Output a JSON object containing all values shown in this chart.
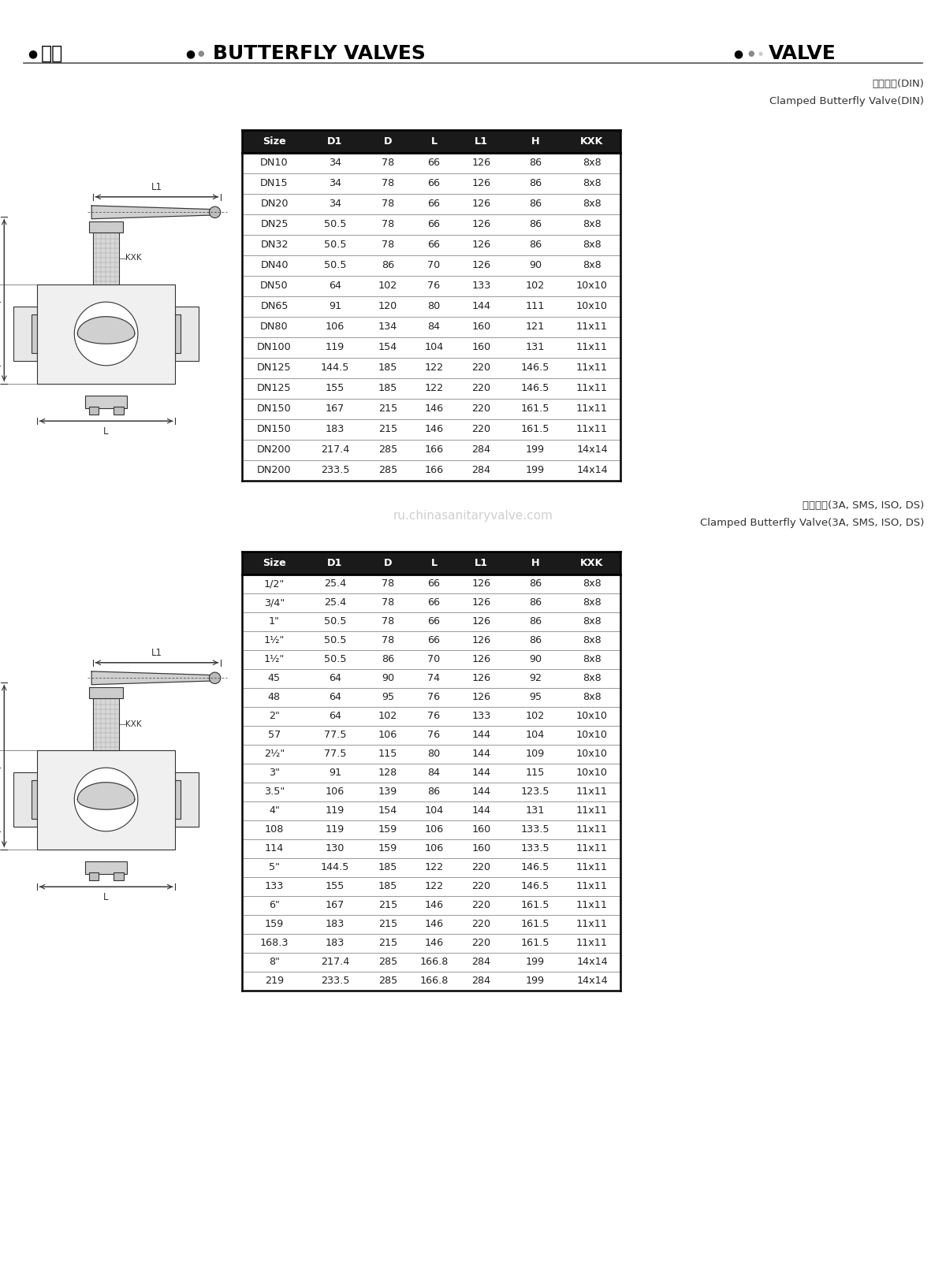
{
  "page_bg": "#ffffff",
  "header_title_left": "蟞阀",
  "header_title_mid": "BUTTERFLY VALVES",
  "header_title_right": "VALVE",
  "table1_title_cn": "卡笼蟞阀(DIN)",
  "table1_title_en": "Clamped Butterfly Valve(DIN)",
  "table1_headers": [
    "Size",
    "D1",
    "D",
    "L",
    "L1",
    "H",
    "KXK"
  ],
  "table1_rows": [
    [
      "DN10",
      "34",
      "78",
      "66",
      "126",
      "86",
      "8x8"
    ],
    [
      "DN15",
      "34",
      "78",
      "66",
      "126",
      "86",
      "8x8"
    ],
    [
      "DN20",
      "34",
      "78",
      "66",
      "126",
      "86",
      "8x8"
    ],
    [
      "DN25",
      "50.5",
      "78",
      "66",
      "126",
      "86",
      "8x8"
    ],
    [
      "DN32",
      "50.5",
      "78",
      "66",
      "126",
      "86",
      "8x8"
    ],
    [
      "DN40",
      "50.5",
      "86",
      "70",
      "126",
      "90",
      "8x8"
    ],
    [
      "DN50",
      "64",
      "102",
      "76",
      "133",
      "102",
      "10x10"
    ],
    [
      "DN65",
      "91",
      "120",
      "80",
      "144",
      "111",
      "10x10"
    ],
    [
      "DN80",
      "106",
      "134",
      "84",
      "160",
      "121",
      "11x11"
    ],
    [
      "DN100",
      "119",
      "154",
      "104",
      "160",
      "131",
      "11x11"
    ],
    [
      "DN125",
      "144.5",
      "185",
      "122",
      "220",
      "146.5",
      "11x11"
    ],
    [
      "DN125",
      "155",
      "185",
      "122",
      "220",
      "146.5",
      "11x11"
    ],
    [
      "DN150",
      "167",
      "215",
      "146",
      "220",
      "161.5",
      "11x11"
    ],
    [
      "DN150",
      "183",
      "215",
      "146",
      "220",
      "161.5",
      "11x11"
    ],
    [
      "DN200",
      "217.4",
      "285",
      "166",
      "284",
      "199",
      "14x14"
    ],
    [
      "DN200",
      "233.5",
      "285",
      "166",
      "284",
      "199",
      "14x14"
    ]
  ],
  "table2_title_cn": "卡倘蟞阀(3A, SMS, ISO, DS)",
  "table2_title_en": "Clamped Butterfly Valve(3A, SMS, ISO, DS)",
  "table2_headers": [
    "Size",
    "D1",
    "D",
    "L",
    "L1",
    "H",
    "KXK"
  ],
  "table2_rows": [
    [
      "1/2\"",
      "25.4",
      "78",
      "66",
      "126",
      "86",
      "8x8"
    ],
    [
      "3/4\"",
      "25.4",
      "78",
      "66",
      "126",
      "86",
      "8x8"
    ],
    [
      "1\"",
      "50.5",
      "78",
      "66",
      "126",
      "86",
      "8x8"
    ],
    [
      "1½\"",
      "50.5",
      "78",
      "66",
      "126",
      "86",
      "8x8"
    ],
    [
      "1½\"",
      "50.5",
      "86",
      "70",
      "126",
      "90",
      "8x8"
    ],
    [
      "45",
      "64",
      "90",
      "74",
      "126",
      "92",
      "8x8"
    ],
    [
      "48",
      "64",
      "95",
      "76",
      "126",
      "95",
      "8x8"
    ],
    [
      "2\"",
      "64",
      "102",
      "76",
      "133",
      "102",
      "10x10"
    ],
    [
      "57",
      "77.5",
      "106",
      "76",
      "144",
      "104",
      "10x10"
    ],
    [
      "2½\"",
      "77.5",
      "115",
      "80",
      "144",
      "109",
      "10x10"
    ],
    [
      "3\"",
      "91",
      "128",
      "84",
      "144",
      "115",
      "10x10"
    ],
    [
      "3.5\"",
      "106",
      "139",
      "86",
      "144",
      "123.5",
      "11x11"
    ],
    [
      "4\"",
      "119",
      "154",
      "104",
      "144",
      "131",
      "11x11"
    ],
    [
      "108",
      "119",
      "159",
      "106",
      "160",
      "133.5",
      "11x11"
    ],
    [
      "114",
      "130",
      "159",
      "106",
      "160",
      "133.5",
      "11x11"
    ],
    [
      "5\"",
      "144.5",
      "185",
      "122",
      "220",
      "146.5",
      "11x11"
    ],
    [
      "133",
      "155",
      "185",
      "122",
      "220",
      "146.5",
      "11x11"
    ],
    [
      "6\"",
      "167",
      "215",
      "146",
      "220",
      "161.5",
      "11x11"
    ],
    [
      "159",
      "183",
      "215",
      "146",
      "220",
      "161.5",
      "11x11"
    ],
    [
      "168.3",
      "183",
      "215",
      "146",
      "220",
      "161.5",
      "11x11"
    ],
    [
      "8\"",
      "217.4",
      "285",
      "166.8",
      "284",
      "199",
      "14x14"
    ],
    [
      "219",
      "233.5",
      "285",
      "166.8",
      "284",
      "199",
      "14x14"
    ]
  ],
  "header_bg": "#1a1a1a",
  "header_text_color": "#ffffff",
  "row_line_color": "#999999",
  "row_text_color": "#222222",
  "watermark_text": "ru.chinasanitaryvalve.com",
  "watermark_color": "#bbbbbb"
}
